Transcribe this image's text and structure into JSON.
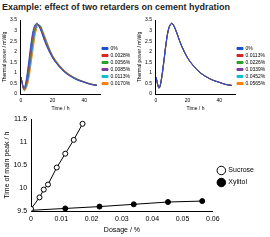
{
  "title": "Example: effect of two retarders on cement hydration",
  "chart_data": [
    {
      "type": "line",
      "x_label": "Time / h",
      "y_label": "Thermal power / mW/g",
      "x": [
        0,
        2,
        4,
        6,
        8,
        10,
        12,
        14,
        16,
        20,
        24,
        28,
        32,
        36,
        40,
        44,
        48
      ],
      "xlim": [
        0,
        50
      ],
      "xticks": [
        0,
        20,
        40
      ],
      "ylim": [
        0,
        3.5
      ],
      "yticks": [
        0,
        0.5,
        1,
        1.5,
        2,
        2.5,
        3,
        3.5
      ],
      "grid": false,
      "legend": "right",
      "series": [
        {
          "name": "0%",
          "color": "#1f4fd1",
          "values": [
            0.8,
            0.3,
            1.0,
            2.2,
            3.1,
            3.35,
            3.1,
            2.7,
            2.3,
            1.7,
            1.3,
            1.0,
            0.8,
            0.65,
            0.55,
            0.45,
            0.4
          ]
        },
        {
          "name": "0.0028%",
          "color": "#d62728",
          "values": [
            0.8,
            0.25,
            0.85,
            2.0,
            3.0,
            3.33,
            3.15,
            2.75,
            2.35,
            1.72,
            1.32,
            1.02,
            0.82,
            0.66,
            0.56,
            0.46,
            0.41
          ]
        },
        {
          "name": "0.0056%",
          "color": "#2ca02c",
          "values": [
            0.8,
            0.22,
            0.7,
            1.8,
            2.85,
            3.3,
            3.2,
            2.8,
            2.4,
            1.75,
            1.34,
            1.04,
            0.83,
            0.67,
            0.57,
            0.47,
            0.41
          ]
        },
        {
          "name": "0.0085%",
          "color": "#7b3fa0",
          "values": [
            0.8,
            0.2,
            0.6,
            1.6,
            2.7,
            3.25,
            3.22,
            2.85,
            2.45,
            1.78,
            1.36,
            1.05,
            0.84,
            0.68,
            0.57,
            0.47,
            0.42
          ]
        },
        {
          "name": "0.0113%",
          "color": "#17becf",
          "values": [
            0.8,
            0.18,
            0.5,
            1.4,
            2.5,
            3.2,
            3.25,
            2.9,
            2.5,
            1.8,
            1.38,
            1.06,
            0.85,
            0.69,
            0.58,
            0.48,
            0.42
          ]
        },
        {
          "name": "0.0170%",
          "color": "#ff7f0e",
          "values": [
            0.8,
            0.15,
            0.4,
            1.2,
            2.3,
            3.1,
            3.25,
            2.95,
            2.55,
            1.83,
            1.4,
            1.08,
            0.86,
            0.7,
            0.58,
            0.48,
            0.43
          ]
        }
      ]
    },
    {
      "type": "line",
      "x_label": "Time / h",
      "y_label": "Thermal power / mW/g",
      "x": [
        0,
        2,
        4,
        6,
        8,
        10,
        12,
        14,
        16,
        20,
        24,
        28,
        32,
        36,
        40,
        44,
        48
      ],
      "xlim": [
        0,
        50
      ],
      "xticks": [
        0,
        20,
        40
      ],
      "ylim": [
        0,
        3.5
      ],
      "yticks": [
        0,
        0.5,
        1,
        1.5,
        2,
        2.5,
        3,
        3.5
      ],
      "grid": false,
      "legend": "right",
      "series": [
        {
          "name": "0%",
          "color": "#1f4fd1",
          "values": [
            0.8,
            0.3,
            1.0,
            2.2,
            3.1,
            3.35,
            3.1,
            2.7,
            2.3,
            1.7,
            1.3,
            1.0,
            0.8,
            0.65,
            0.55,
            0.45,
            0.4
          ]
        },
        {
          "name": "0.0113%",
          "color": "#d62728",
          "values": [
            0.8,
            0.29,
            0.98,
            2.18,
            3.09,
            3.35,
            3.11,
            2.71,
            2.31,
            1.7,
            1.3,
            1.0,
            0.8,
            0.65,
            0.55,
            0.45,
            0.4
          ]
        },
        {
          "name": "0.0226%",
          "color": "#2ca02c",
          "values": [
            0.8,
            0.28,
            0.96,
            2.16,
            3.08,
            3.34,
            3.12,
            2.72,
            2.32,
            1.71,
            1.31,
            1.01,
            0.81,
            0.65,
            0.55,
            0.45,
            0.4
          ]
        },
        {
          "name": "0.0339%",
          "color": "#7b3fa0",
          "values": [
            0.8,
            0.28,
            0.94,
            2.14,
            3.07,
            3.34,
            3.12,
            2.72,
            2.32,
            1.71,
            1.31,
            1.01,
            0.81,
            0.66,
            0.56,
            0.46,
            0.41
          ]
        },
        {
          "name": "0.0452%",
          "color": "#17becf",
          "values": [
            0.8,
            0.27,
            0.92,
            2.12,
            3.06,
            3.33,
            3.13,
            2.73,
            2.33,
            1.72,
            1.31,
            1.01,
            0.81,
            0.66,
            0.56,
            0.46,
            0.41
          ]
        },
        {
          "name": "0.0565%",
          "color": "#ff7f0e",
          "values": [
            0.8,
            0.27,
            0.9,
            2.1,
            3.05,
            3.33,
            3.13,
            2.73,
            2.33,
            1.72,
            1.32,
            1.02,
            0.82,
            0.66,
            0.56,
            0.46,
            0.41
          ]
        }
      ]
    },
    {
      "type": "scatter",
      "x_label": "Dosage / %",
      "y_label": "Time of main peak / h",
      "xlim": [
        0,
        0.06
      ],
      "xticks": [
        0,
        0.01,
        0.02,
        0.03,
        0.04,
        0.05,
        0.06
      ],
      "ylim": [
        9.5,
        11.5
      ],
      "yticks": [
        9.5,
        10,
        10.5,
        11,
        11.5
      ],
      "grid": false,
      "legend": "right",
      "series": [
        {
          "name": "Sucrose",
          "color": "#000000",
          "marker": "circle_open",
          "line_style": "solid",
          "x": [
            0,
            0.0028,
            0.0042,
            0.0056,
            0.0085,
            0.0113,
            0.0141,
            0.017
          ],
          "values": [
            9.55,
            9.8,
            9.97,
            10.08,
            10.45,
            10.75,
            11.05,
            11.4
          ]
        },
        {
          "name": "Xylitol",
          "color": "#000000",
          "marker": "circle",
          "line_style": "solid",
          "x": [
            0,
            0.0113,
            0.0226,
            0.0339,
            0.0452,
            0.0565
          ],
          "values": [
            9.52,
            9.56,
            9.6,
            9.65,
            9.7,
            9.72
          ]
        }
      ]
    }
  ]
}
